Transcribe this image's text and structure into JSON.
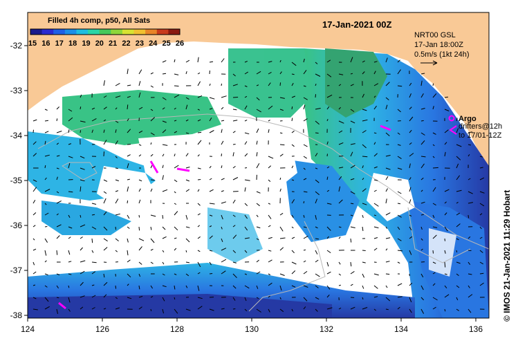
{
  "map": {
    "title": "Filled 4h comp, p50, All Sats",
    "date": "17-Jan-2021 00Z",
    "legend": {
      "product": "NRT00 GSL",
      "time": "17-Jan 18:00Z",
      "scale": "0.5m/s (1kt 24h)"
    },
    "argo": {
      "label": "Argo",
      "drifters_line1": "drifters@12h",
      "drifters_line2": "to 17/01-12Z",
      "color": "#ff00ff"
    },
    "credit": "© IMOS 21-Jan-2021 11:29 Hobart",
    "colorbar": {
      "labels": [
        "15",
        "16",
        "17",
        "18",
        "19",
        "20",
        "21",
        "22",
        "23",
        "24",
        "25",
        "26"
      ],
      "colors": [
        "#1a1a8c",
        "#2a2ad0",
        "#1f5fe6",
        "#1c8ee8",
        "#1fbde0",
        "#2ad5a6",
        "#46c85a",
        "#8fd63a",
        "#d8e232",
        "#f0c030",
        "#e88428",
        "#c83a1c",
        "#8a1a10"
      ]
    },
    "x_axis": {
      "labels": [
        "124",
        "126",
        "128",
        "130",
        "132",
        "134",
        "136"
      ]
    },
    "y_axis": {
      "labels": [
        "-32",
        "-33",
        "-34",
        "-35",
        "-36",
        "-37",
        "-38"
      ]
    },
    "colors": {
      "land": "#f9c996",
      "cloud": "#ffffff",
      "sst_deep": "#1a2fa0",
      "sst_blue": "#1e6fe0",
      "sst_cyan": "#23b0e4",
      "sst_green": "#2fc080"
    }
  }
}
